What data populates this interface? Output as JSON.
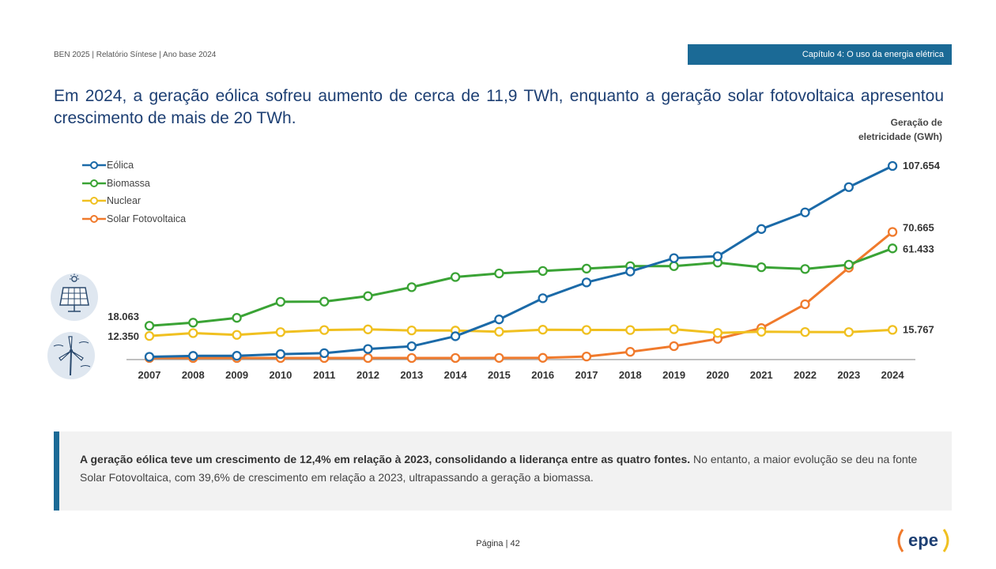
{
  "header": {
    "doc_info": "BEN 2025 | Relatório Síntese | Ano base 2024",
    "chapter": "Capítulo 4: O uso da energia elétrica"
  },
  "headline": "Em 2024, a geração eólica sofreu aumento de cerca de 11,9 TWh, enquanto a geração solar fotovoltaica apresentou crescimento de mais de 20 TWh.",
  "unit_label_line1": "Geração de",
  "unit_label_line2": "eletricidade (GWh)",
  "callout": {
    "bold": "A geração eólica teve um crescimento de 12,4% em relação à 2023, consolidando a liderança entre as quatro fontes.",
    "normal": " No entanto, a maior evolução se deu na fonte Solar Fotovoltaica, com 39,6% de crescimento em relação a 2023, ultrapassando a geração a biomassa."
  },
  "footer": {
    "page": "Página | 42",
    "logo": "epe"
  },
  "icons": [
    "solar-panel-icon",
    "wind-turbine-icon"
  ],
  "chart_data": {
    "type": "line",
    "title": "",
    "ylabel": "Geração de eletricidade (GWh)",
    "x": [
      "2007",
      "2008",
      "2009",
      "2010",
      "2011",
      "2012",
      "2013",
      "2014",
      "2015",
      "2016",
      "2017",
      "2018",
      "2019",
      "2020",
      "2021",
      "2022",
      "2023",
      "2024"
    ],
    "ylim": [
      0,
      115000
    ],
    "grid": false,
    "legend_position": "top-left",
    "series": [
      {
        "name": "Eólica",
        "color": "#1b6aa8",
        "values": [
          663,
          1183,
          1238,
          2177,
          2705,
          5050,
          6578,
          12210,
          21626,
          33489,
          42373,
          48475,
          55986,
          57051,
          72286,
          81632,
          95801,
          107654
        ]
      },
      {
        "name": "Biomassa",
        "color": "#3aa335",
        "values": [
          18063,
          19800,
          22500,
          31500,
          31600,
          34700,
          39700,
          45400,
          47400,
          48800,
          50100,
          51500,
          51500,
          53500,
          50900,
          49900,
          52300,
          61433
        ]
      },
      {
        "name": "Nuclear",
        "color": "#f0c020",
        "values": [
          12350,
          13969,
          12957,
          14523,
          15659,
          16038,
          15450,
          15378,
          14734,
          15864,
          15739,
          15674,
          16129,
          14053,
          14705,
          14559,
          14511,
          15767
        ]
      },
      {
        "name": "Solar Fotovoltaica",
        "color": "#f07a2c",
        "values": [
          0,
          0,
          0,
          0,
          0,
          0,
          0,
          16,
          59,
          85,
          832,
          3461,
          6655,
          10750,
          16752,
          30126,
          50633,
          70665
        ]
      }
    ],
    "value_labels": {
      "left": [
        "18.063",
        "12.350"
      ],
      "right": [
        "107.654",
        "70.665",
        "61.433",
        "15.767"
      ]
    }
  }
}
